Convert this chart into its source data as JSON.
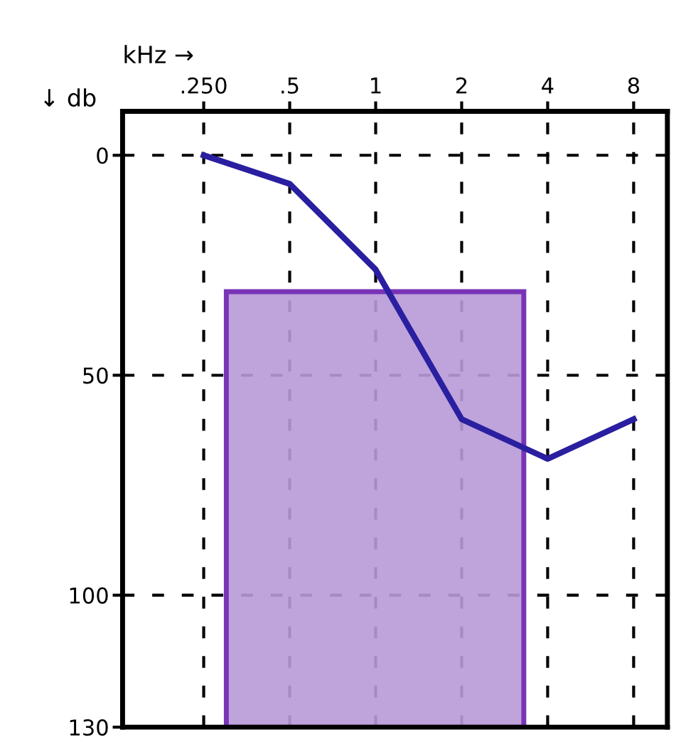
{
  "chart_data": {
    "type": "line",
    "xlabel": "kHz →",
    "ylabel": "↓ db",
    "log": "x",
    "xlim": [
      0.13,
      10.5
    ],
    "xticks": [
      {
        "value": 0.25,
        "label": ".250"
      },
      {
        "value": 0.5,
        "label": ".5"
      },
      1,
      2,
      4,
      8
    ],
    "ylim": [
      130,
      -10
    ],
    "yticks": [
      0,
      50,
      100,
      130
    ],
    "grid": true,
    "series": [
      {
        "type": "area",
        "color": "#b99ad8",
        "x": [
          0.3,
          0.3,
          3.3,
          3.3
        ],
        "values": [
          130,
          31,
          31,
          130
        ]
      },
      {
        "color": "#2a1fa0",
        "x": [
          0.25,
          0.5,
          1,
          2,
          4,
          8
        ],
        "values": [
          0,
          6.5,
          26,
          60,
          69,
          60
        ]
      }
    ]
  }
}
